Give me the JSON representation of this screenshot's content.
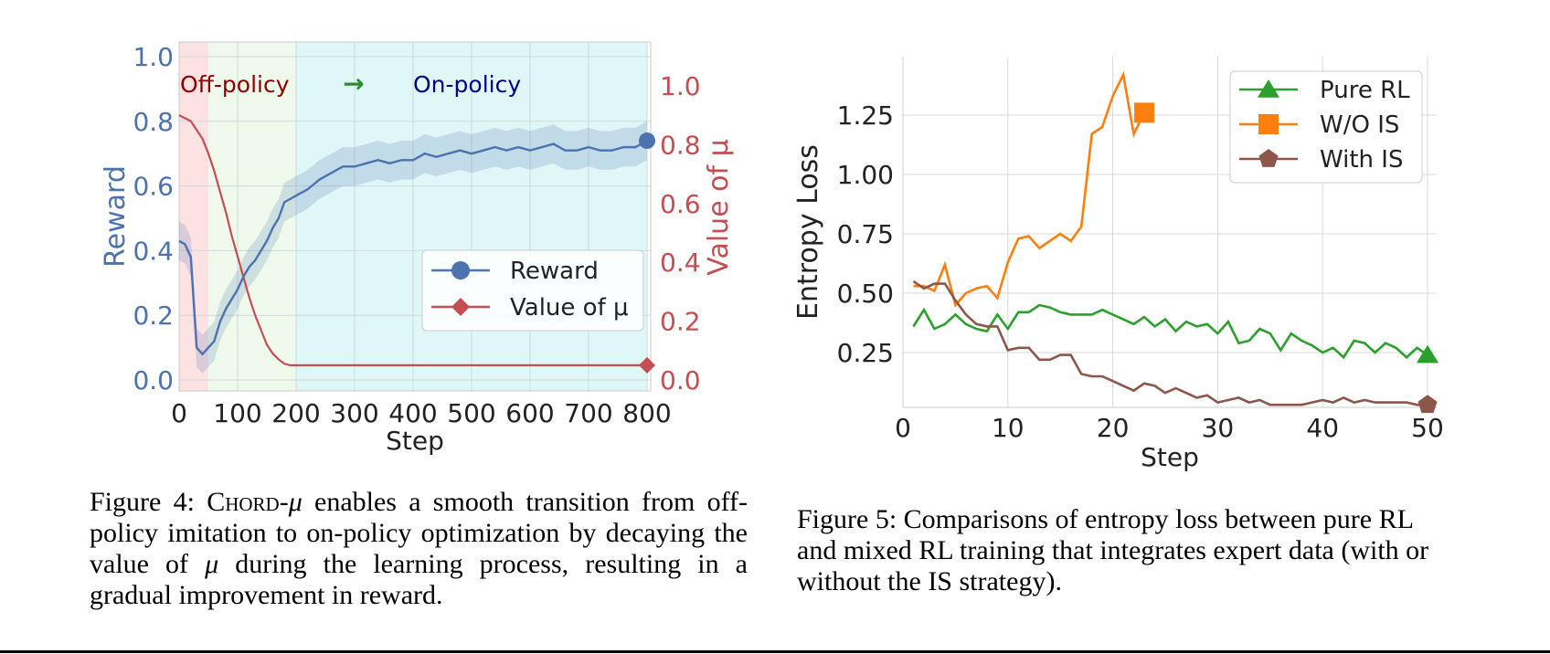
{
  "chart_data": [
    {
      "type": "line",
      "xlabel": "Step",
      "ylabel": "Reward",
      "ylabel_right": "Value of μ",
      "xlim": [
        0,
        800
      ],
      "ylim": [
        0,
        1.0
      ],
      "ylim_right": [
        0,
        1.1
      ],
      "x_ticks": [
        0,
        100,
        200,
        300,
        400,
        500,
        600,
        700,
        800
      ],
      "y_ticks": [
        "0.0",
        "0.2",
        "0.4",
        "0.6",
        "0.8",
        "1.0"
      ],
      "y_ticks_right": [
        "0.0",
        "0.2",
        "0.4",
        "0.6",
        "0.8",
        "1.0"
      ],
      "annotations": {
        "off": "Off-policy",
        "arrow": "→",
        "on": "On-policy"
      },
      "regions": [
        {
          "from": 0,
          "to": 50,
          "color": "#fde2e4"
        },
        {
          "from": 50,
          "to": 200,
          "color": "#effaec"
        },
        {
          "from": 200,
          "to": 800,
          "color": "#dff7f7"
        }
      ],
      "grid": true,
      "legend_position": "lower-right",
      "series": [
        {
          "name": "Reward",
          "color": "#4c72b0",
          "marker": "circle",
          "axis": "left",
          "x": [
            0,
            10,
            20,
            30,
            40,
            50,
            60,
            70,
            80,
            90,
            100,
            110,
            120,
            130,
            140,
            150,
            160,
            170,
            180,
            190,
            200,
            220,
            240,
            260,
            280,
            300,
            320,
            340,
            360,
            380,
            400,
            420,
            440,
            460,
            480,
            500,
            520,
            540,
            560,
            580,
            600,
            620,
            640,
            660,
            680,
            700,
            720,
            740,
            760,
            780,
            800
          ],
          "y": [
            0.43,
            0.42,
            0.38,
            0.1,
            0.08,
            0.1,
            0.12,
            0.18,
            0.22,
            0.25,
            0.28,
            0.32,
            0.35,
            0.37,
            0.4,
            0.43,
            0.47,
            0.5,
            0.55,
            0.56,
            0.57,
            0.59,
            0.62,
            0.64,
            0.66,
            0.66,
            0.67,
            0.68,
            0.67,
            0.68,
            0.68,
            0.7,
            0.69,
            0.7,
            0.71,
            0.7,
            0.71,
            0.72,
            0.71,
            0.72,
            0.71,
            0.72,
            0.73,
            0.71,
            0.71,
            0.72,
            0.71,
            0.71,
            0.72,
            0.72,
            0.74
          ]
        },
        {
          "name": "Value of μ",
          "color": "#c44e52",
          "marker": "diamond",
          "axis": "right",
          "x": [
            0,
            10,
            20,
            30,
            40,
            50,
            60,
            70,
            80,
            90,
            100,
            110,
            120,
            130,
            140,
            150,
            160,
            170,
            180,
            190,
            200,
            800
          ],
          "y": [
            0.9,
            0.89,
            0.88,
            0.85,
            0.82,
            0.77,
            0.71,
            0.64,
            0.57,
            0.49,
            0.42,
            0.35,
            0.28,
            0.22,
            0.17,
            0.12,
            0.09,
            0.07,
            0.055,
            0.05,
            0.05,
            0.05
          ]
        }
      ]
    },
    {
      "type": "line",
      "xlabel": "Step",
      "ylabel": "Entropy Loss",
      "xlim": [
        0,
        50
      ],
      "ylim": [
        0,
        1.45
      ],
      "x_ticks": [
        0,
        10,
        20,
        30,
        40,
        50
      ],
      "y_ticks": [
        "0.25",
        "0.50",
        "0.75",
        "1.00",
        "1.25"
      ],
      "grid": true,
      "legend_position": "top-right",
      "series": [
        {
          "name": "Pure RL",
          "color": "#2ca02c",
          "marker": "triangle",
          "x": [
            1,
            2,
            3,
            4,
            5,
            6,
            7,
            8,
            9,
            10,
            11,
            12,
            13,
            14,
            15,
            16,
            17,
            18,
            19,
            20,
            21,
            22,
            23,
            24,
            25,
            26,
            27,
            28,
            29,
            30,
            31,
            32,
            33,
            34,
            35,
            36,
            37,
            38,
            39,
            40,
            41,
            42,
            43,
            44,
            45,
            46,
            47,
            48,
            49,
            50
          ],
          "y": [
            0.36,
            0.43,
            0.35,
            0.37,
            0.41,
            0.37,
            0.35,
            0.34,
            0.41,
            0.35,
            0.42,
            0.42,
            0.45,
            0.44,
            0.42,
            0.41,
            0.41,
            0.41,
            0.43,
            0.41,
            0.39,
            0.37,
            0.4,
            0.36,
            0.39,
            0.34,
            0.38,
            0.36,
            0.37,
            0.33,
            0.38,
            0.29,
            0.3,
            0.35,
            0.33,
            0.26,
            0.33,
            0.3,
            0.28,
            0.25,
            0.27,
            0.23,
            0.3,
            0.29,
            0.25,
            0.29,
            0.27,
            0.23,
            0.27,
            0.24
          ]
        },
        {
          "name": "W/O IS",
          "color": "#ff7f0e",
          "marker": "square",
          "x": [
            1,
            2,
            3,
            4,
            5,
            6,
            7,
            8,
            9,
            10,
            11,
            12,
            13,
            14,
            15,
            16,
            17,
            18,
            19,
            20,
            21,
            22,
            23
          ],
          "y": [
            0.53,
            0.53,
            0.51,
            0.62,
            0.45,
            0.5,
            0.52,
            0.53,
            0.48,
            0.63,
            0.73,
            0.74,
            0.69,
            0.72,
            0.75,
            0.72,
            0.78,
            1.17,
            1.2,
            1.33,
            1.42,
            1.17,
            1.26
          ]
        },
        {
          "name": "With IS",
          "color": "#8c564b",
          "marker": "pentagon",
          "x": [
            1,
            2,
            3,
            4,
            5,
            6,
            7,
            8,
            9,
            10,
            11,
            12,
            13,
            14,
            15,
            16,
            17,
            18,
            19,
            20,
            21,
            22,
            23,
            24,
            25,
            26,
            27,
            28,
            29,
            30,
            31,
            32,
            33,
            34,
            35,
            36,
            37,
            38,
            39,
            40,
            41,
            42,
            43,
            44,
            45,
            46,
            47,
            48,
            49,
            50
          ],
          "y": [
            0.55,
            0.52,
            0.54,
            0.54,
            0.47,
            0.41,
            0.37,
            0.36,
            0.36,
            0.26,
            0.27,
            0.27,
            0.22,
            0.22,
            0.24,
            0.24,
            0.16,
            0.15,
            0.15,
            0.13,
            0.11,
            0.09,
            0.12,
            0.11,
            0.08,
            0.1,
            0.08,
            0.06,
            0.07,
            0.04,
            0.05,
            0.06,
            0.04,
            0.05,
            0.03,
            0.03,
            0.03,
            0.03,
            0.04,
            0.05,
            0.04,
            0.06,
            0.04,
            0.05,
            0.04,
            0.04,
            0.04,
            0.04,
            0.03,
            0.03
          ]
        }
      ]
    }
  ],
  "captions": {
    "fig4": {
      "prefix": "Figure 4: ",
      "name": "Chord",
      "dash": "-",
      "mu": "μ",
      "text": " enables a smooth transition from off-policy imitation to on-policy optimization by decaying the value of ",
      "mu2": "μ",
      "text2": " during the learning process, resulting in a gradual improvement in reward."
    },
    "fig5": {
      "text": "Figure 5: Comparisons of entropy loss between pure RL and mixed RL training that integrates expert data (with or without the IS strategy)."
    }
  }
}
